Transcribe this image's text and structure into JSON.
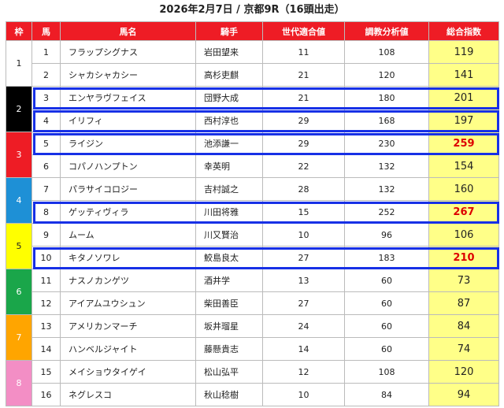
{
  "title": "2026年2月7日 / 京都9R（16頭出走）",
  "headers": [
    "枠",
    "馬",
    "馬名",
    "騎手",
    "世代適合値",
    "調教分析値",
    "総合指数"
  ],
  "frames": [
    {
      "label": "1",
      "bg": "#ffffff",
      "fg": "#222222",
      "rows": [
        0,
        1
      ]
    },
    {
      "label": "2",
      "bg": "#000000",
      "fg": "#ffffff",
      "rows": [
        2,
        3
      ]
    },
    {
      "label": "3",
      "bg": "#ee1c25",
      "fg": "#ffffff",
      "rows": [
        4,
        5
      ]
    },
    {
      "label": "4",
      "bg": "#1e90d6",
      "fg": "#ffffff",
      "rows": [
        6,
        7
      ]
    },
    {
      "label": "5",
      "bg": "#ffff00",
      "fg": "#222222",
      "rows": [
        8,
        9
      ]
    },
    {
      "label": "6",
      "bg": "#1aa64a",
      "fg": "#ffffff",
      "rows": [
        10,
        11
      ]
    },
    {
      "label": "7",
      "bg": "#ffa500",
      "fg": "#ffffff",
      "rows": [
        12,
        13
      ]
    },
    {
      "label": "8",
      "bg": "#f38ec5",
      "fg": "#ffffff",
      "rows": [
        14,
        15
      ]
    }
  ],
  "rows": [
    {
      "num": "1",
      "name": "フラップシグナス",
      "jockey": "岩田望来",
      "gen": "11",
      "train": "108",
      "score": "119",
      "hi": false
    },
    {
      "num": "2",
      "name": "シャカシャカシー",
      "jockey": "高杉吏麒",
      "gen": "21",
      "train": "120",
      "score": "141",
      "hi": false
    },
    {
      "num": "3",
      "name": "エンヤラヴフェイス",
      "jockey": "団野大成",
      "gen": "21",
      "train": "180",
      "score": "201",
      "hi": false
    },
    {
      "num": "4",
      "name": "イリフィ",
      "jockey": "西村淳也",
      "gen": "29",
      "train": "168",
      "score": "197",
      "hi": false
    },
    {
      "num": "5",
      "name": "ライジン",
      "jockey": "池添謙一",
      "gen": "29",
      "train": "230",
      "score": "259",
      "hi": true
    },
    {
      "num": "6",
      "name": "コパノハンプトン",
      "jockey": "幸英明",
      "gen": "22",
      "train": "132",
      "score": "154",
      "hi": false
    },
    {
      "num": "7",
      "name": "パラサイコロジー",
      "jockey": "吉村誠之",
      "gen": "28",
      "train": "132",
      "score": "160",
      "hi": false
    },
    {
      "num": "8",
      "name": "ゲッティヴィラ",
      "jockey": "川田将雅",
      "gen": "15",
      "train": "252",
      "score": "267",
      "hi": true
    },
    {
      "num": "9",
      "name": "ムーム",
      "jockey": "川又賢治",
      "gen": "10",
      "train": "96",
      "score": "106",
      "hi": false
    },
    {
      "num": "10",
      "name": "キタノソワレ",
      "jockey": "鮫島良太",
      "gen": "27",
      "train": "183",
      "score": "210",
      "hi": true
    },
    {
      "num": "11",
      "name": "ナスノカンゲツ",
      "jockey": "酒井学",
      "gen": "13",
      "train": "60",
      "score": "73",
      "hi": false
    },
    {
      "num": "12",
      "name": "アイアムユウシュン",
      "jockey": "柴田善臣",
      "gen": "27",
      "train": "60",
      "score": "87",
      "hi": false
    },
    {
      "num": "13",
      "name": "アメリカンマーチ",
      "jockey": "坂井瑠星",
      "gen": "24",
      "train": "60",
      "score": "84",
      "hi": false
    },
    {
      "num": "14",
      "name": "ハンベルジャイト",
      "jockey": "藤懸貴志",
      "gen": "14",
      "train": "60",
      "score": "74",
      "hi": false
    },
    {
      "num": "15",
      "name": "メイショウタイゲイ",
      "jockey": "松山弘平",
      "gen": "12",
      "train": "108",
      "score": "120",
      "hi": false
    },
    {
      "num": "16",
      "name": "ネグレスコ",
      "jockey": "秋山稔樹",
      "gen": "10",
      "train": "84",
      "score": "94",
      "hi": false
    }
  ],
  "highlighted_rows": [
    2,
    3,
    4,
    7,
    9
  ],
  "colors": {
    "header": "#ee1c25",
    "score_bg": "#ffff88",
    "highlight_border": "#1730e6",
    "hi_text": "#dd0000"
  }
}
